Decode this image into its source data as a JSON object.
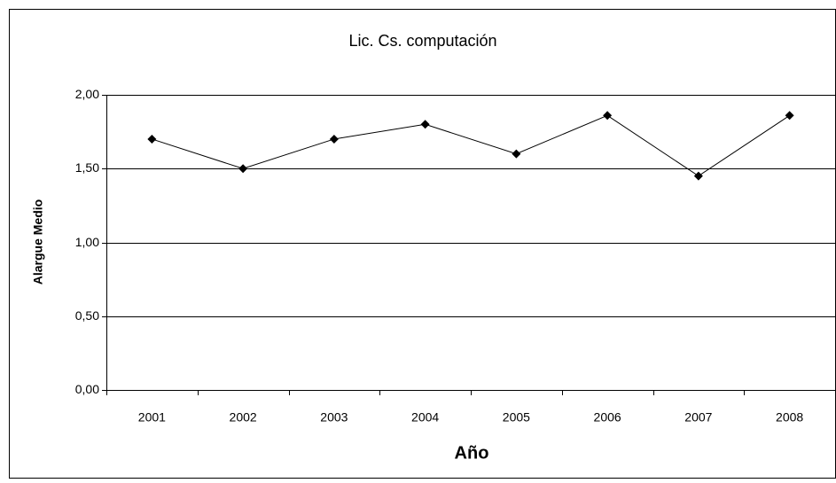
{
  "chart_data": {
    "type": "line",
    "title": "Lic. Cs. computación",
    "x_label": "Año",
    "y_label": "Alargue Medio",
    "categories": [
      "2001",
      "2002",
      "2003",
      "2004",
      "2005",
      "2006",
      "2007",
      "2008"
    ],
    "series": [
      {
        "name": "Alargue Medio",
        "color": "#000000",
        "values": [
          1.7,
          1.5,
          1.7,
          1.8,
          1.6,
          1.86,
          1.45,
          1.86
        ]
      }
    ],
    "ylim": [
      0,
      2
    ],
    "yticks": [
      {
        "value": 0,
        "label": "0,00"
      },
      {
        "value": 0.5,
        "label": "0,50"
      },
      {
        "value": 1,
        "label": "1,00"
      },
      {
        "value": 1.5,
        "label": "1,50"
      },
      {
        "value": 2,
        "label": "2,00"
      }
    ],
    "grid": true
  }
}
